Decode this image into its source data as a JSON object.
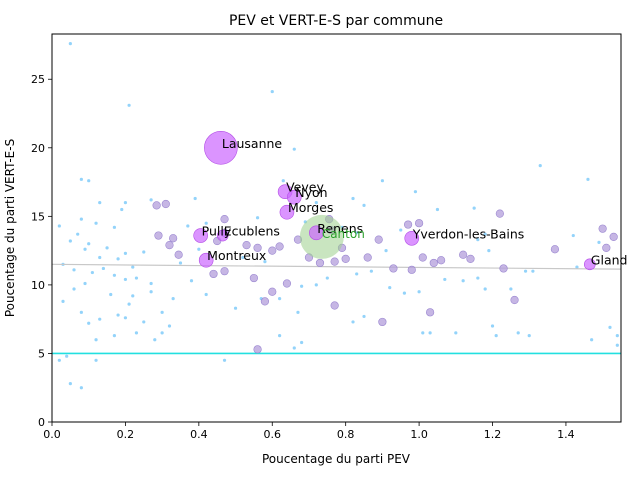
{
  "chart_data": {
    "type": "scatter",
    "title": "PEV et VERT-E-S par commune",
    "xlabel": "Poucentage du parti PEV",
    "ylabel": "Poucentage du parti VERT-E-S",
    "xlim": [
      0,
      1.55
    ],
    "ylim": [
      0,
      28.3
    ],
    "xticks": [
      "0.0",
      "0.2",
      "0.4",
      "0.6",
      "0.8",
      "1.0",
      "1.2",
      "1.4"
    ],
    "xtick_values": [
      0,
      0.2,
      0.4,
      0.6,
      0.8,
      1.0,
      1.2,
      1.4
    ],
    "yticks": [
      "0",
      "5",
      "10",
      "15",
      "20",
      "25"
    ],
    "ytick_values": [
      0,
      5,
      10,
      15,
      20,
      25
    ],
    "grid": false,
    "legend": "none",
    "colors": {
      "small_points": "#87cefa",
      "medium_points": "#b39ddb",
      "labeled_points": "#cc66ff",
      "canton": "#9ccf8c",
      "canton_label": "#2ca02c",
      "regression": "#c8c8c8",
      "reference_line": "#22e0e0"
    },
    "reference_line": {
      "y": 5
    },
    "regression_line": {
      "x": [
        0,
        1.55
      ],
      "y": [
        11.5,
        11.15
      ]
    },
    "labeled_communes": [
      {
        "label": "Lausanne",
        "x": 0.46,
        "y": 20.0,
        "size": "xl"
      },
      {
        "label": "Vevey",
        "x": 0.635,
        "y": 16.8,
        "size": "m"
      },
      {
        "label": "Nyon",
        "x": 0.66,
        "y": 16.4,
        "size": "m"
      },
      {
        "label": "Morges",
        "x": 0.64,
        "y": 15.3,
        "size": "m"
      },
      {
        "label": "Renens",
        "x": 0.72,
        "y": 13.8,
        "size": "m"
      },
      {
        "label": "Pully",
        "x": 0.405,
        "y": 13.6,
        "size": "m"
      },
      {
        "label": "Ecublens",
        "x": 0.465,
        "y": 13.6,
        "size": "s"
      },
      {
        "label": "Yverdon-les-Bains",
        "x": 0.98,
        "y": 13.4,
        "size": "m"
      },
      {
        "label": "Montreux",
        "x": 0.42,
        "y": 11.8,
        "size": "m"
      },
      {
        "label": "Gland",
        "x": 1.465,
        "y": 11.5,
        "size": "s"
      }
    ],
    "canton": {
      "label": "Canton",
      "x": 0.735,
      "y": 13.5
    },
    "medium_points": [
      [
        0.285,
        15.8
      ],
      [
        0.31,
        15.9
      ],
      [
        0.33,
        13.4
      ],
      [
        0.345,
        12.2
      ],
      [
        0.29,
        13.6
      ],
      [
        0.32,
        12.9
      ],
      [
        0.47,
        14.8
      ],
      [
        0.53,
        12.9
      ],
      [
        0.56,
        12.7
      ],
      [
        0.6,
        12.5
      ],
      [
        0.62,
        12.8
      ],
      [
        0.45,
        13.2
      ],
      [
        0.47,
        11.0
      ],
      [
        0.44,
        10.8
      ],
      [
        0.55,
        10.5
      ],
      [
        0.6,
        9.5
      ],
      [
        0.64,
        10.1
      ],
      [
        0.67,
        13.3
      ],
      [
        0.7,
        12.0
      ],
      [
        0.73,
        11.6
      ],
      [
        0.755,
        14.8
      ],
      [
        0.76,
        14.0
      ],
      [
        0.77,
        11.7
      ],
      [
        0.79,
        12.7
      ],
      [
        0.8,
        11.9
      ],
      [
        0.77,
        8.5
      ],
      [
        0.86,
        12.0
      ],
      [
        0.89,
        13.3
      ],
      [
        0.9,
        7.3
      ],
      [
        0.93,
        11.2
      ],
      [
        0.97,
        14.4
      ],
      [
        1.0,
        14.5
      ],
      [
        1.01,
        12.0
      ],
      [
        1.04,
        11.6
      ],
      [
        1.06,
        11.8
      ],
      [
        1.12,
        12.2
      ],
      [
        1.14,
        11.9
      ],
      [
        1.23,
        11.2
      ],
      [
        1.26,
        8.9
      ],
      [
        1.37,
        12.6
      ],
      [
        0.56,
        5.3
      ],
      [
        0.58,
        8.8
      ],
      [
        0.47,
        13.8
      ],
      [
        0.98,
        11.1
      ],
      [
        1.03,
        8.0
      ],
      [
        1.22,
        15.2
      ],
      [
        1.5,
        14.1
      ],
      [
        1.53,
        13.5
      ],
      [
        1.51,
        12.7
      ]
    ],
    "small_points": [
      [
        0.05,
        27.6
      ],
      [
        0.21,
        23.1
      ],
      [
        0.6,
        24.1
      ],
      [
        0.66,
        19.9
      ],
      [
        1.33,
        18.7
      ],
      [
        0.08,
        17.7
      ],
      [
        0.1,
        17.6
      ],
      [
        0.27,
        16.2
      ],
      [
        0.2,
        16.0
      ],
      [
        0.13,
        16.0
      ],
      [
        0.19,
        15.5
      ],
      [
        0.08,
        14.8
      ],
      [
        0.12,
        14.5
      ],
      [
        0.02,
        14.3
      ],
      [
        0.17,
        14.2
      ],
      [
        0.07,
        13.7
      ],
      [
        0.05,
        13.2
      ],
      [
        0.1,
        13.0
      ],
      [
        0.15,
        12.7
      ],
      [
        0.09,
        12.6
      ],
      [
        0.13,
        12.0
      ],
      [
        0.18,
        11.9
      ],
      [
        0.2,
        12.3
      ],
      [
        0.22,
        11.3
      ],
      [
        0.25,
        12.4
      ],
      [
        0.03,
        11.5
      ],
      [
        0.06,
        11.1
      ],
      [
        0.11,
        10.9
      ],
      [
        0.14,
        11.2
      ],
      [
        0.17,
        10.7
      ],
      [
        0.2,
        10.4
      ],
      [
        0.23,
        10.5
      ],
      [
        0.27,
        10.1
      ],
      [
        0.09,
        10.1
      ],
      [
        0.06,
        9.7
      ],
      [
        0.16,
        9.3
      ],
      [
        0.22,
        9.2
      ],
      [
        0.27,
        9.5
      ],
      [
        0.35,
        11.6
      ],
      [
        0.38,
        10.3
      ],
      [
        0.33,
        9.0
      ],
      [
        0.3,
        8.0
      ],
      [
        0.21,
        8.6
      ],
      [
        0.18,
        7.8
      ],
      [
        0.25,
        7.3
      ],
      [
        0.13,
        7.5
      ],
      [
        0.1,
        7.2
      ],
      [
        0.08,
        8.0
      ],
      [
        0.03,
        8.8
      ],
      [
        0.2,
        7.6
      ],
      [
        0.23,
        6.5
      ],
      [
        0.17,
        6.3
      ],
      [
        0.3,
        6.5
      ],
      [
        0.32,
        7.0
      ],
      [
        0.28,
        6.0
      ],
      [
        0.12,
        6.0
      ],
      [
        0.04,
        4.8
      ],
      [
        0.12,
        4.5
      ],
      [
        0.02,
        4.5
      ],
      [
        0.05,
        2.8
      ],
      [
        0.08,
        2.5
      ],
      [
        0.47,
        4.5
      ],
      [
        0.42,
        9.3
      ],
      [
        0.5,
        8.3
      ],
      [
        0.57,
        9.0
      ],
      [
        0.62,
        9.0
      ],
      [
        0.67,
        8.0
      ],
      [
        0.62,
        6.3
      ],
      [
        0.68,
        5.8
      ],
      [
        0.66,
        5.4
      ],
      [
        0.82,
        7.3
      ],
      [
        0.85,
        7.7
      ],
      [
        0.92,
        9.8
      ],
      [
        0.96,
        9.4
      ],
      [
        1.0,
        9.5
      ],
      [
        1.01,
        6.5
      ],
      [
        1.03,
        6.5
      ],
      [
        1.1,
        6.5
      ],
      [
        1.2,
        7.0
      ],
      [
        1.21,
        6.3
      ],
      [
        1.27,
        6.5
      ],
      [
        1.3,
        6.3
      ],
      [
        1.25,
        9.7
      ],
      [
        1.18,
        9.7
      ],
      [
        1.16,
        10.5
      ],
      [
        1.12,
        10.3
      ],
      [
        1.07,
        10.4
      ],
      [
        1.19,
        12.5
      ],
      [
        1.16,
        13.3
      ],
      [
        1.18,
        13.7
      ],
      [
        1.15,
        15.6
      ],
      [
        1.05,
        15.5
      ],
      [
        0.99,
        16.8
      ],
      [
        0.85,
        15.8
      ],
      [
        0.82,
        16.3
      ],
      [
        0.9,
        17.6
      ],
      [
        0.72,
        16.0
      ],
      [
        0.69,
        14.6
      ],
      [
        0.79,
        14.2
      ],
      [
        0.83,
        13.8
      ],
      [
        0.95,
        14.0
      ],
      [
        0.91,
        12.5
      ],
      [
        0.87,
        11.0
      ],
      [
        0.83,
        10.8
      ],
      [
        0.75,
        10.5
      ],
      [
        0.72,
        10.0
      ],
      [
        0.68,
        9.9
      ],
      [
        0.58,
        11.7
      ],
      [
        0.52,
        12.0
      ],
      [
        0.4,
        12.6
      ],
      [
        0.37,
        14.3
      ],
      [
        0.39,
        16.3
      ],
      [
        0.42,
        14.5
      ],
      [
        0.56,
        14.9
      ],
      [
        0.63,
        17.6
      ],
      [
        1.29,
        11.0
      ],
      [
        1.31,
        11.0
      ],
      [
        1.43,
        11.3
      ],
      [
        1.46,
        17.7
      ],
      [
        1.42,
        13.6
      ],
      [
        1.49,
        13.1
      ],
      [
        1.52,
        6.9
      ],
      [
        1.54,
        6.3
      ],
      [
        1.54,
        5.6
      ],
      [
        1.47,
        6.0
      ]
    ]
  }
}
